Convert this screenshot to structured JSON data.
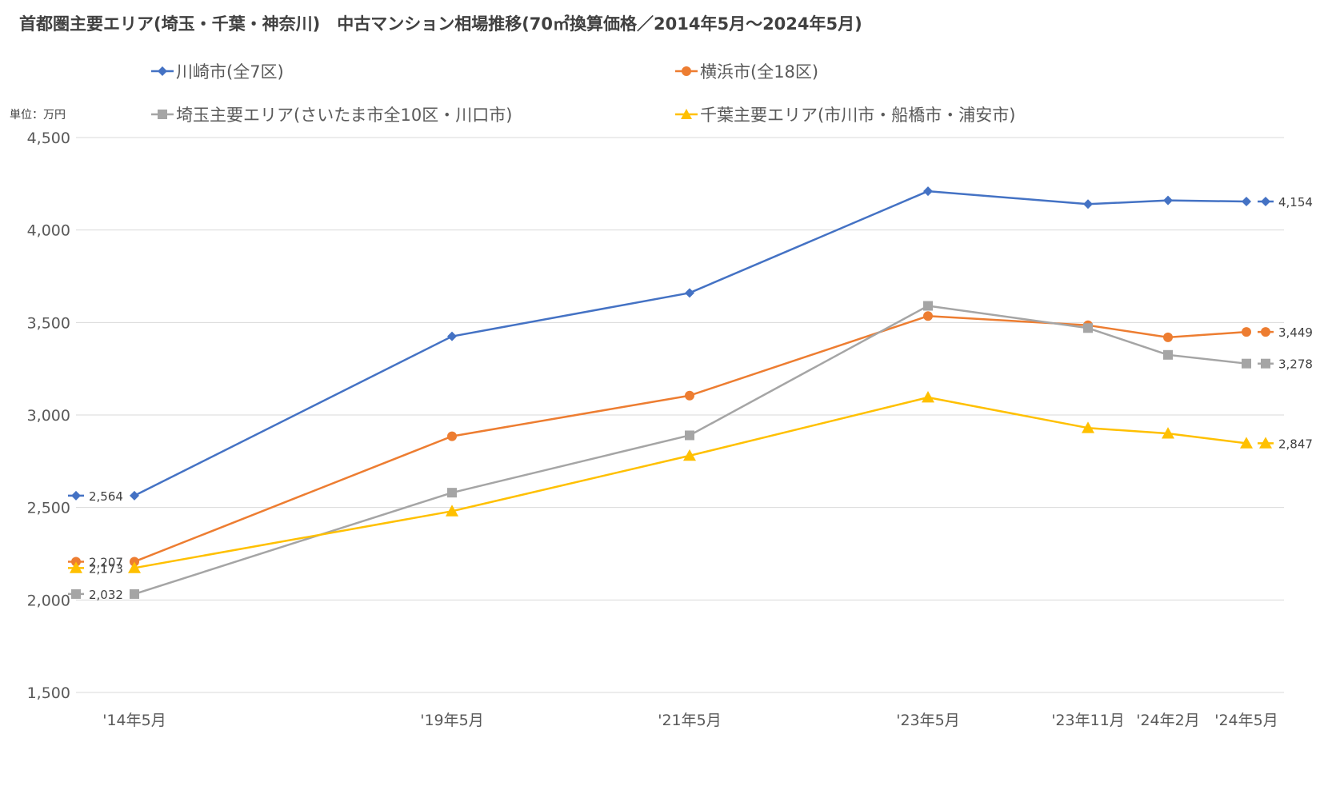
{
  "chart_data": {
    "type": "line",
    "title": "首都圏主要エリア(埼玉・千葉・神奈川)　中古マンション相場推移(70㎡換算価格／2014年5月～2024年5月)",
    "unit_label": "単位：万円",
    "categories": [
      "'14年5月",
      "'19年5月",
      "'21年5月",
      "'23年5月",
      "'23年11月",
      "'24年2月",
      "'24年5月"
    ],
    "ylim": [
      1500,
      4500
    ],
    "yticks": [
      1500,
      2000,
      2500,
      3000,
      3500,
      4000,
      4500
    ],
    "ytick_labels": [
      "1,500",
      "2,000",
      "2,500",
      "3,000",
      "3,500",
      "4,000",
      "4,500"
    ],
    "grid": true,
    "legend_position": "top",
    "series": [
      {
        "name": "川崎市(全7区)",
        "color": "#4472C4",
        "marker": "diamond",
        "values": [
          2564,
          3425,
          3660,
          4210,
          4140,
          4160,
          4154
        ],
        "start_label": "2,564",
        "end_label": "4,154"
      },
      {
        "name": "横浜市(全18区)",
        "color": "#ED7D31",
        "marker": "circle",
        "values": [
          2207,
          2885,
          3105,
          3535,
          3485,
          3420,
          3449
        ],
        "start_label": "2,207",
        "end_label": "3,449"
      },
      {
        "name": "埼玉主要エリア(さいたま市全10区・川口市)",
        "color": "#A5A5A5",
        "marker": "square",
        "values": [
          2032,
          2580,
          2890,
          3590,
          3470,
          3325,
          3278
        ],
        "start_label": "2,032",
        "end_label": "3,278"
      },
      {
        "name": "千葉主要エリア(市川市・船橋市・浦安市)",
        "color": "#FFC000",
        "marker": "triangle",
        "values": [
          2173,
          2480,
          2780,
          3095,
          2930,
          2900,
          2847
        ],
        "start_label": "2,173",
        "end_label": "2,847"
      }
    ]
  }
}
